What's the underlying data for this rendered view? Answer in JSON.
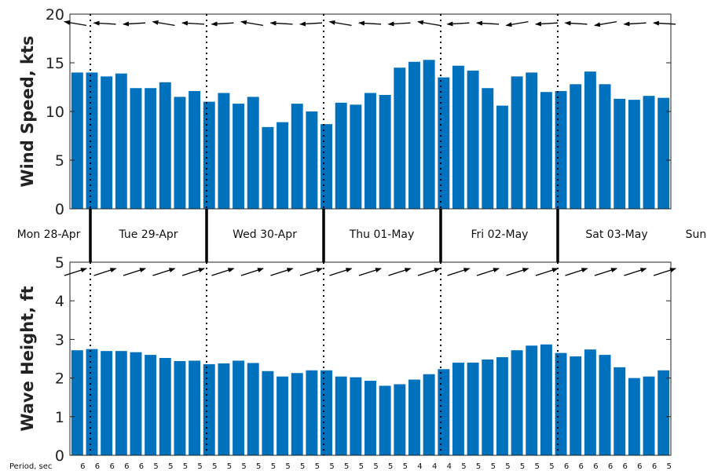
{
  "chart_data": [
    {
      "type": "bar",
      "ylabel": "Wind Speed, kts",
      "ylim": [
        0,
        20
      ],
      "yticks": [
        "0",
        "5",
        "10",
        "15",
        "20"
      ],
      "color": "#0072bd",
      "values": [
        14.0,
        14.0,
        13.6,
        13.9,
        12.4,
        12.4,
        13.0,
        11.5,
        12.1,
        11.0,
        11.9,
        10.8,
        11.5,
        8.4,
        8.9,
        10.8,
        10.0,
        8.7,
        10.9,
        10.7,
        11.9,
        11.7,
        14.5,
        15.1,
        15.3,
        13.5,
        14.7,
        14.2,
        12.4,
        10.6,
        13.6,
        14.0,
        12.0,
        12.1,
        12.8,
        14.1,
        12.8,
        11.3,
        11.2,
        11.6,
        11.4
      ],
      "direction_arrows": "left-pointing (wind)"
    },
    {
      "type": "bar",
      "ylabel": "Wave Height, ft",
      "ylim": [
        0,
        5
      ],
      "yticks": [
        "0",
        "1",
        "2",
        "3",
        "4",
        "5"
      ],
      "color": "#0072bd",
      "values": [
        2.72,
        2.75,
        2.7,
        2.7,
        2.67,
        2.6,
        2.52,
        2.44,
        2.45,
        2.36,
        2.38,
        2.45,
        2.39,
        2.18,
        2.04,
        2.13,
        2.2,
        2.2,
        2.04,
        2.02,
        1.93,
        1.8,
        1.84,
        1.96,
        2.1,
        2.23,
        2.4,
        2.4,
        2.48,
        2.54,
        2.72,
        2.84,
        2.87,
        2.65,
        2.56,
        2.74,
        2.6,
        2.28,
        2.0,
        2.04,
        2.2
      ],
      "direction_arrows": "right-pointing (waves)"
    }
  ],
  "days": [
    "Mon 28-Apr",
    "Tue 29-Apr",
    "Wed 30-Apr",
    "Thu 01-May",
    "Fri 02-May",
    "Sat 03-May",
    "Sun"
  ],
  "period_label": "Period, sec",
  "periods": [
    "6",
    "6",
    "6",
    "6",
    "6",
    "5",
    "5",
    "5",
    "5",
    "5",
    "5",
    "5",
    "5",
    "5",
    "5",
    "5",
    "5",
    "5",
    "5",
    "5",
    "5",
    "5",
    "5",
    "4",
    "4",
    "4",
    "5",
    "5",
    "5",
    "5",
    "5",
    "5",
    "5",
    "6",
    "6",
    "6",
    "6",
    "6",
    "6",
    "6",
    "5"
  ]
}
